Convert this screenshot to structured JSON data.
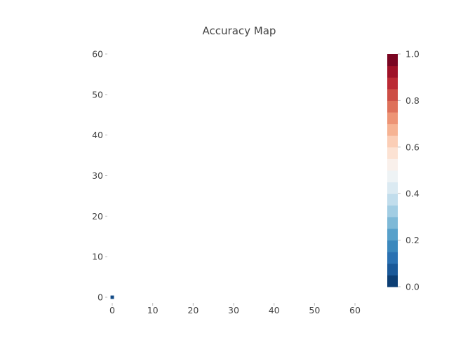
{
  "chart_data": {
    "type": "heatmap",
    "title": "Accuracy Map",
    "xlabel": "",
    "ylabel": "",
    "xlim": [
      0,
      64
    ],
    "ylim": [
      0,
      64
    ],
    "x_ticks": [
      "0",
      "10",
      "20",
      "30",
      "40",
      "50",
      "60"
    ],
    "y_ticks": [
      "0",
      "10",
      "20",
      "30",
      "40",
      "50",
      "60"
    ],
    "x_tick_values": [
      0,
      10,
      20,
      30,
      40,
      50,
      60
    ],
    "y_tick_values": [
      0,
      10,
      20,
      30,
      40,
      50,
      60
    ],
    "cells": [
      {
        "x": 0,
        "y": 0,
        "value": 0.05
      }
    ],
    "colorbar": {
      "colormap": "RdBu_r",
      "range": [
        0.0,
        1.0
      ],
      "ticks": [
        "0.0",
        "0.2",
        "0.4",
        "0.6",
        "0.8",
        "1.0"
      ],
      "tick_values": [
        0.0,
        0.2,
        0.4,
        0.6,
        0.8,
        1.0
      ],
      "levels": 20,
      "colors": [
        "#053061",
        "#2166ac",
        "#4393c3",
        "#92c5de",
        "#d1e5f0",
        "#f7f7f7",
        "#fddbc7",
        "#f4a582",
        "#d6604d",
        "#b2182b",
        "#67001f"
      ]
    },
    "grid": false
  }
}
